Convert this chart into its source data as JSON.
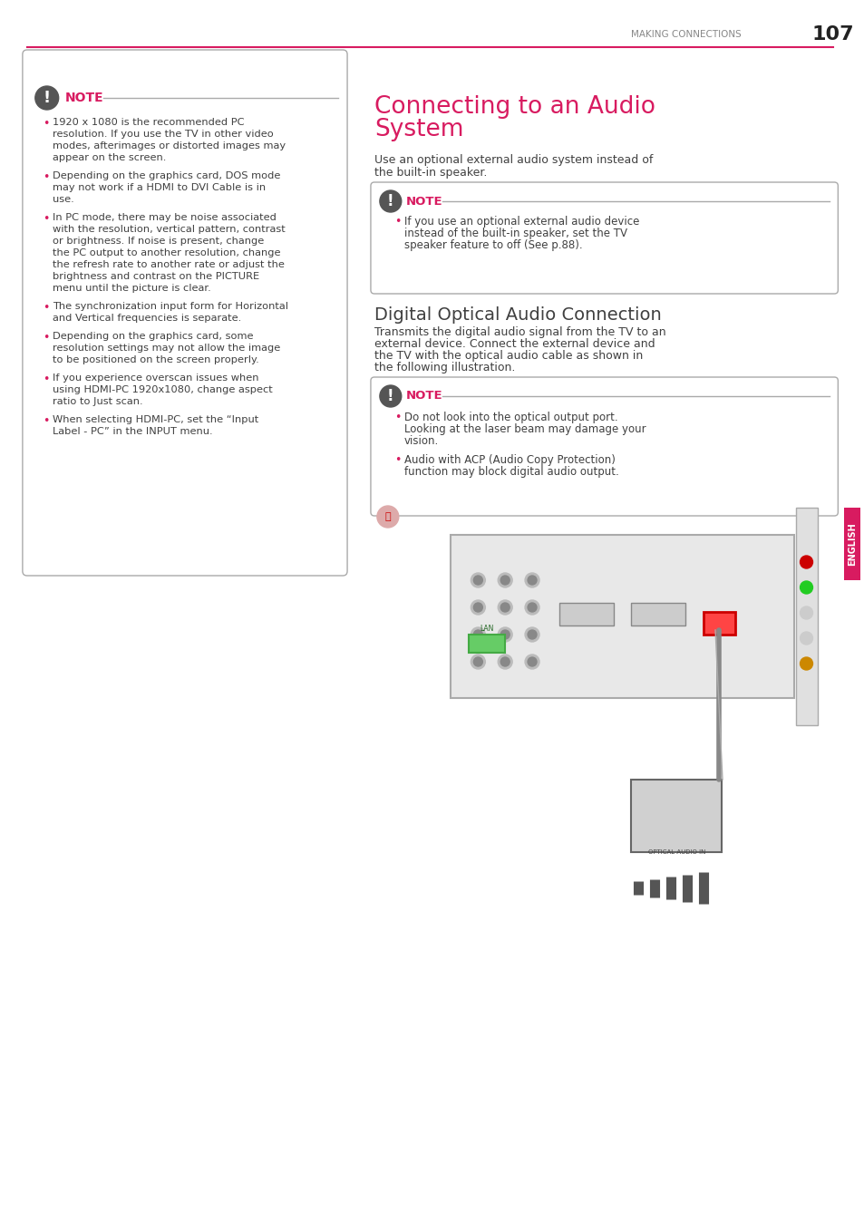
{
  "page_title_section": "MAKING CONNECTIONS",
  "page_number": "107",
  "header_line_color": "#d81b60",
  "background_color": "#ffffff",
  "text_color": "#404040",
  "pink_color": "#d81b60",
  "gray_color": "#808080",
  "note_border_color": "#aaaaaa",
  "section_title_right": "Connecting to an Audio System",
  "section_desc_right": "Use an optional external audio system instead of\nthe built-in speaker.",
  "note_right1_bullet": "If you use an optional external audio device\ninstead of the built-in speaker, set the TV\nspeaker feature to off (See p.88).",
  "section_title2": "Digital Optical Audio Connection",
  "section_desc2": "Transmits the digital audio signal from the TV to an\nexternal device. Connect the external device and\nthe TV with the optical audio cable as shown in\nthe following illustration.",
  "note_right2_bullets": [
    "Do not look into the optical output port.\nLooking at the laser beam may damage your\nvision.",
    "Audio with ACP (Audio Copy Protection)\nfunction may block digital audio output."
  ],
  "left_note_bullets": [
    "1920 x 1080 is the recommended PC\nresolution. If you use the TV in other video\nmodes, afterimages or distorted images may\nappear on the screen.",
    "Depending on the graphics card, DOS mode\nmay not work if a HDMI to DVI Cable is in\nuse.",
    "In PC mode, there may be noise associated\nwith the resolution, vertical pattern, contrast\nor brightness. If noise is present, change\nthe PC output to another resolution, change\nthe refresh rate to another rate or adjust the\nbrightness and contrast on the PICTURE\nmenu until the picture is clear.",
    "The synchronization input form for Horizontal\nand Vertical frequencies is separate.",
    "Depending on the graphics card, some\nresolution settings may not allow the image\nto be positioned on the screen properly.",
    "If you experience overscan issues when\nusing HDMI-PC 1920x1080, change aspect\nratio to Just scan.",
    "When selecting HDMI-PC, set the “Input\nLabel - PC” in the INPUT menu."
  ],
  "english_tab_color": "#d81b60",
  "english_tab_text": "ENGLISH"
}
